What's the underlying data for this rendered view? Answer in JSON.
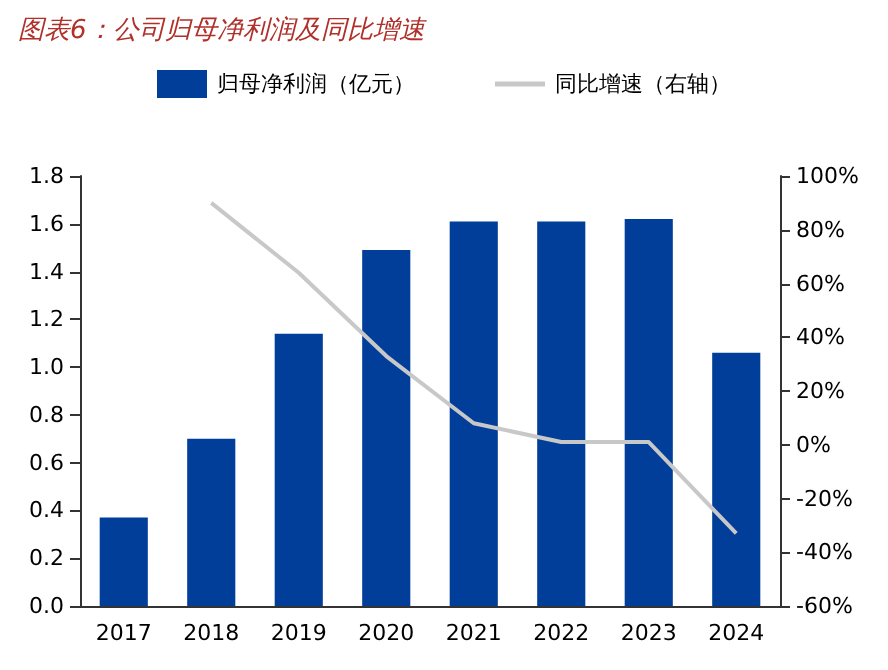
{
  "chart_data": {
    "type": "bar",
    "title": "图表6：公司归母净利润及同比增速",
    "categories": [
      "2017",
      "2018",
      "2019",
      "2020",
      "2021",
      "2022",
      "2023",
      "2024"
    ],
    "series": [
      {
        "name": "归母净利润（亿元）",
        "color": "#003e99",
        "values": [
          0.37,
          0.7,
          1.14,
          1.49,
          1.61,
          1.61,
          1.62,
          1.06
        ]
      },
      {
        "name": "同比增速（右轴）",
        "type": "line",
        "axis": "y2",
        "color": "#c8c8c8",
        "values": [
          null,
          90,
          64,
          33,
          8,
          1,
          1,
          -33
        ]
      }
    ],
    "ylim": [
      0,
      1.8
    ],
    "yticks": [
      {
        "value": 0,
        "label": "0.0"
      },
      {
        "value": 0.2,
        "label": "0.2"
      },
      {
        "value": 0.4,
        "label": "0.4"
      },
      {
        "value": 0.6,
        "label": "0.6"
      },
      {
        "value": 0.8,
        "label": "0.8"
      },
      {
        "value": 1.0,
        "label": "1.0"
      },
      {
        "value": 1.2,
        "label": "1.2"
      },
      {
        "value": 1.4,
        "label": "1.4"
      },
      {
        "value": 1.6,
        "label": "1.6"
      },
      {
        "value": 1.8,
        "label": "1.8"
      }
    ],
    "y2lim": [
      -60,
      100
    ],
    "y2ticks": [
      {
        "value": -60,
        "label": "-60%"
      },
      {
        "value": -40,
        "label": "-40%"
      },
      {
        "value": -20,
        "label": "-20%"
      },
      {
        "value": 0,
        "label": "0%"
      },
      {
        "value": 20,
        "label": "20%"
      },
      {
        "value": 40,
        "label": "40%"
      },
      {
        "value": 60,
        "label": "60%"
      },
      {
        "value": 80,
        "label": "80%"
      },
      {
        "value": 100,
        "label": "100%"
      }
    ],
    "grid": false,
    "legend": "top",
    "marker": "none",
    "line_style": "solid"
  }
}
